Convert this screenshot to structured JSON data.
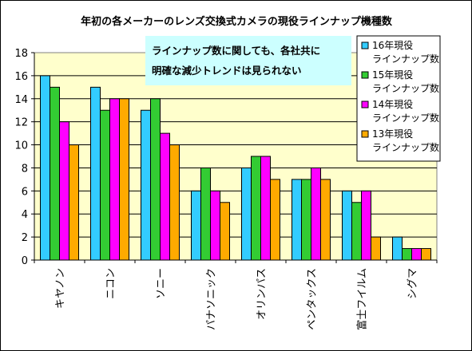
{
  "chart_data": {
    "type": "bar",
    "title": "年初の各メーカーのレンズ交換式カメラの現役ラインナップ機種数",
    "categories": [
      "キヤノン",
      "ニコン",
      "ソニー",
      "パナソニック",
      "オリンパス",
      "ペンタックス",
      "富士フイルム",
      "シグマ"
    ],
    "series": [
      {
        "name": "16年現役ラインナップ数",
        "legend_lines": [
          "16年現役",
          "ラインナップ数"
        ],
        "color": "#33CCFF",
        "values": [
          16,
          15,
          13,
          6,
          8,
          7,
          6,
          2
        ]
      },
      {
        "name": "15年現役ラインナップ数",
        "legend_lines": [
          "15年現役",
          "ラインナップ数"
        ],
        "color": "#33CC33",
        "values": [
          15,
          13,
          14,
          8,
          9,
          7,
          5,
          1
        ]
      },
      {
        "name": "14年現役ラインナップ数",
        "legend_lines": [
          "14年現役",
          "ラインナップ数"
        ],
        "color": "#FF00FF",
        "values": [
          12,
          14,
          11,
          6,
          9,
          8,
          6,
          1
        ]
      },
      {
        "name": "13年現役ラインナップ数",
        "legend_lines": [
          "13年現役",
          "ラインナップ数"
        ],
        "color": "#FFAA00",
        "values": [
          10,
          14,
          10,
          5,
          7,
          7,
          2,
          1
        ]
      }
    ],
    "ylim": [
      0,
      18
    ],
    "yticks": [
      0,
      2,
      4,
      6,
      8,
      10,
      12,
      14,
      16,
      18
    ],
    "grid": true,
    "legend_position": "right",
    "annotation": [
      "ラインナップ数に関しても、各社共に",
      "明確な減少トレンドは見られない"
    ],
    "colors": {
      "plot_background": "#FFFFCC",
      "annotation_background": "#CCFFFF"
    }
  }
}
